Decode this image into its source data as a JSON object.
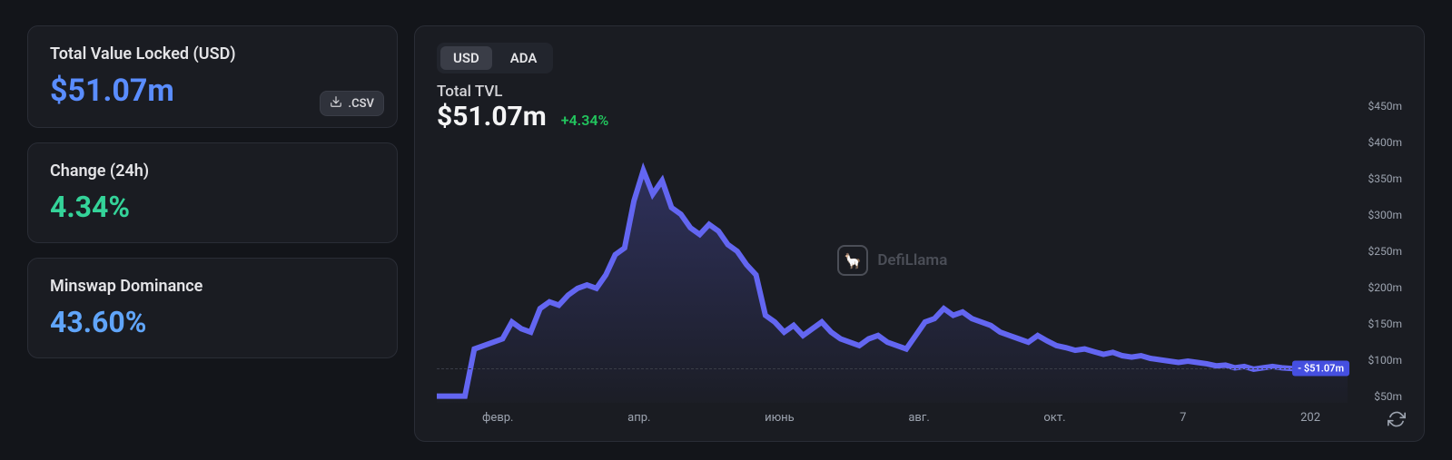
{
  "sidebar": {
    "tvl": {
      "label": "Total Value Locked (USD)",
      "value": "$51.07m"
    },
    "change": {
      "label": "Change (24h)",
      "value": "4.34%"
    },
    "dominance": {
      "label": "Minswap Dominance",
      "value": "43.60%"
    },
    "csv_label": ".CSV"
  },
  "chart": {
    "tabs": {
      "usd": "USD",
      "ada": "ADA",
      "active": "usd"
    },
    "title": "Total TVL",
    "value": "$51.07m",
    "change": "+4.34%",
    "watermark": "DefiLlama",
    "current_badge": "$51.07m",
    "y_axis": {
      "labels": [
        "$450m",
        "$400m",
        "$350m",
        "$300m",
        "$250m",
        "$200m",
        "$150m",
        "$100m",
        "$50m"
      ],
      "min": 0,
      "max": 450,
      "unit": "m"
    },
    "x_axis": {
      "labels": [
        "февр.",
        "апр.",
        "июнь",
        "авг.",
        "окт.",
        "7",
        "202"
      ]
    },
    "line_color": "#6366f1",
    "area_color_top": "rgba(99,102,241,0.28)",
    "area_color_bottom": "rgba(99,102,241,0.02)",
    "dash_color": "#3a3d47",
    "background": "#1a1c22",
    "data": [
      10,
      10,
      10,
      10,
      80,
      85,
      90,
      95,
      120,
      110,
      105,
      140,
      150,
      145,
      160,
      170,
      175,
      170,
      190,
      220,
      230,
      300,
      345,
      310,
      330,
      290,
      280,
      260,
      250,
      265,
      255,
      235,
      225,
      205,
      190,
      130,
      120,
      105,
      115,
      100,
      110,
      120,
      105,
      95,
      90,
      85,
      95,
      100,
      90,
      85,
      80,
      100,
      120,
      125,
      140,
      130,
      135,
      125,
      120,
      115,
      105,
      100,
      95,
      90,
      100,
      92,
      85,
      82,
      78,
      80,
      76,
      72,
      75,
      70,
      68,
      70,
      66,
      64,
      62,
      60,
      62,
      60,
      58,
      55,
      56,
      52,
      54,
      50,
      52,
      54,
      52,
      51,
      50,
      51,
      50,
      51,
      51,
      51
    ]
  },
  "colors": {
    "bg": "#13151a",
    "card_bg": "#1a1c22",
    "card_border": "#2a2d36",
    "text": "#d4d4d8",
    "blue": "#5a8dff",
    "green": "#34d399",
    "lightblue": "#60a5fa",
    "badge": "#454fe0"
  }
}
